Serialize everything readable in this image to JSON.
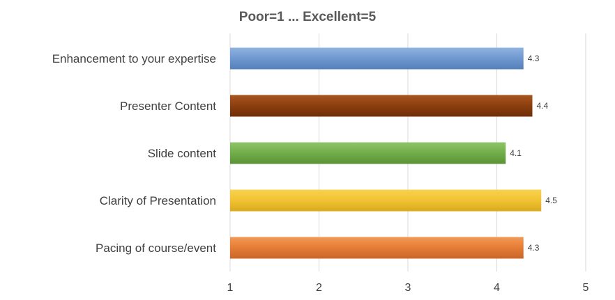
{
  "chart_data": {
    "type": "bar",
    "orientation": "horizontal",
    "title": "Poor=1 ... Excellent=5",
    "xlabel": "",
    "ylabel": "",
    "xlim": [
      1,
      5
    ],
    "ticks": [
      "1",
      "2",
      "3",
      "4",
      "5"
    ],
    "grid": true,
    "categories": [
      "Enhancement to your expertise",
      "Presenter Content",
      "Slide content",
      "Clarity of Presentation",
      "Pacing of course/event"
    ],
    "values": [
      4.3,
      4.4,
      4.1,
      4.5,
      4.3
    ],
    "data_labels": [
      "4.3",
      "4.4",
      "4.1",
      "4.5",
      "4.3"
    ],
    "colors": [
      [
        "#8FB3E0",
        "#6E98D0",
        "#557FB8"
      ],
      [
        "#A9551F",
        "#8B3F0F",
        "#6E2F08"
      ],
      [
        "#8DC46A",
        "#71AD48",
        "#5A9238"
      ],
      [
        "#F7D24E",
        "#F1C232",
        "#D8AA1E"
      ],
      [
        "#F29A55",
        "#E57C35",
        "#C8662A"
      ]
    ]
  }
}
